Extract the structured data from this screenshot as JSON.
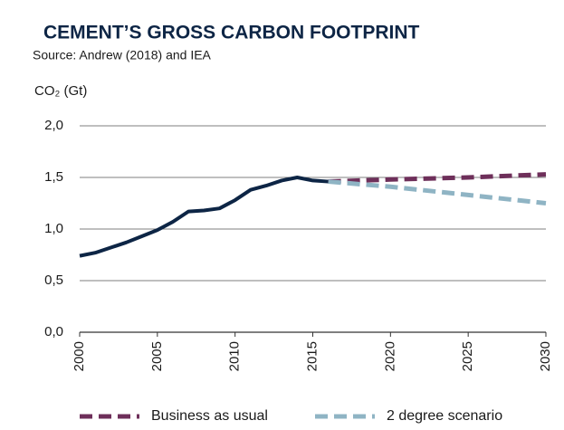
{
  "chart_data": {
    "type": "line",
    "title": "CEMENT’S GROSS CARBON FOOTPRINT",
    "subtitle": "Source: Andrew (2018) and IEA",
    "y_label": "CO₂ (Gt)",
    "x": [
      2000,
      2001,
      2002,
      2003,
      2004,
      2005,
      2006,
      2007,
      2008,
      2009,
      2010,
      2011,
      2012,
      2013,
      2014,
      2015,
      2016,
      2020,
      2025,
      2030
    ],
    "series": [
      {
        "color": "#0d2545",
        "dashed": false,
        "values": [
          0.74,
          0.77,
          0.82,
          0.87,
          0.93,
          0.99,
          1.07,
          1.17,
          1.18,
          1.2,
          1.28,
          1.38,
          1.42,
          1.47,
          1.5,
          1.47,
          1.46,
          null,
          null,
          null
        ]
      },
      {
        "name": "Business as usual",
        "color": "#6e2f5a",
        "dashed": true,
        "values": [
          null,
          null,
          null,
          null,
          null,
          null,
          null,
          null,
          null,
          null,
          null,
          null,
          null,
          null,
          null,
          null,
          1.46,
          1.48,
          1.5,
          1.53
        ]
      },
      {
        "name": "2 degree scenario",
        "color": "#8fb4c4",
        "dashed": true,
        "values": [
          null,
          null,
          null,
          null,
          null,
          null,
          null,
          null,
          null,
          null,
          null,
          null,
          null,
          null,
          null,
          null,
          1.46,
          1.41,
          1.33,
          1.25
        ]
      }
    ],
    "xlim": [
      2000,
      2030
    ],
    "xticks": [
      2000,
      2005,
      2010,
      2015,
      2020,
      2025,
      2030
    ],
    "ylim": [
      0,
      2
    ],
    "yticks": [
      {
        "value": 0,
        "label": "0,0"
      },
      {
        "value": 0.5,
        "label": "0,5"
      },
      {
        "value": 1,
        "label": "1,0"
      },
      {
        "value": 1.5,
        "label": "1,5"
      },
      {
        "value": 2,
        "label": "2,0"
      }
    ],
    "grid": true
  }
}
